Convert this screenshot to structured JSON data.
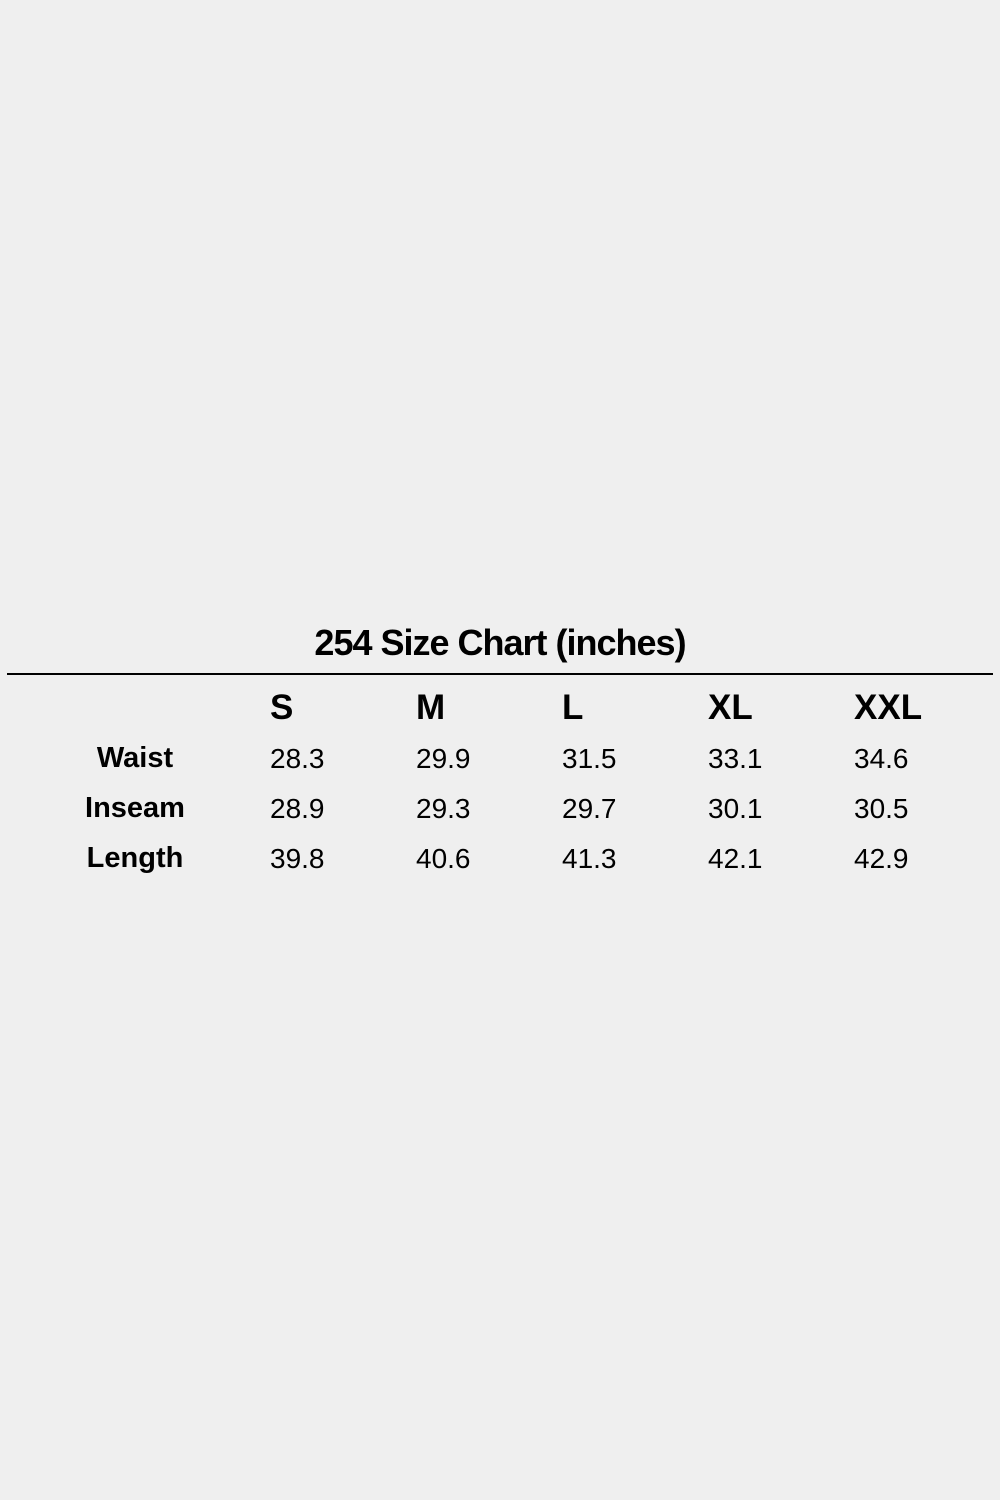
{
  "title": "254 Size Chart (inches)",
  "table": {
    "columns": [
      "S",
      "M",
      "L",
      "XL",
      "XXL"
    ],
    "rows": [
      {
        "label": "Waist",
        "values": [
          "28.3",
          "29.9",
          "31.5",
          "33.1",
          "34.6"
        ]
      },
      {
        "label": "Inseam",
        "values": [
          "28.9",
          "29.3",
          "29.7",
          "30.1",
          "30.5"
        ]
      },
      {
        "label": "Length",
        "values": [
          "39.8",
          "40.6",
          "41.3",
          "42.1",
          "42.9"
        ]
      }
    ]
  }
}
